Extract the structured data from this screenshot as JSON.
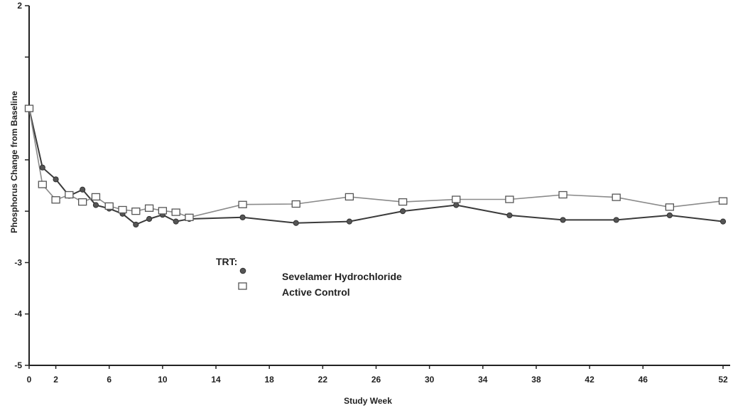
{
  "chart_data": {
    "type": "line",
    "title": "",
    "xlabel": "Study Week",
    "ylabel": "Phosphorus Change from Baseline",
    "xlim": [
      0,
      53
    ],
    "ylim": [
      -5,
      2
    ],
    "x_ticks": [
      0,
      2,
      6,
      10,
      14,
      18,
      22,
      26,
      30,
      34,
      38,
      42,
      46,
      52
    ],
    "y_ticks": [
      2,
      1,
      0,
      -1,
      -2,
      -3,
      -4,
      -5
    ],
    "x_tick_labels": [
      "0",
      "2",
      "6",
      "10",
      "14",
      "18",
      "22",
      "26",
      "30",
      "34",
      "38",
      "42",
      "46",
      "52"
    ],
    "y_tick_labels": [
      "2",
      "",
      "",
      "",
      "",
      "-3",
      "-4",
      "-5"
    ],
    "grid": false,
    "legend": {
      "title": "TRT:",
      "placement": "center"
    },
    "series": [
      {
        "name": "Sevelamer Hydrochloride",
        "marker": "circle",
        "x": [
          0,
          1,
          2,
          3,
          4,
          5,
          6,
          7,
          8,
          9,
          10,
          11,
          12,
          16,
          20,
          24,
          28,
          32,
          36,
          40,
          44,
          48,
          52
        ],
        "y": [
          0,
          -1.15,
          -1.38,
          -1.7,
          -1.58,
          -1.88,
          -1.95,
          -2.05,
          -2.26,
          -2.15,
          -2.07,
          -2.2,
          -2.15,
          -2.12,
          -2.23,
          -2.2,
          -2.0,
          -1.88,
          -2.08,
          -2.17,
          -2.17,
          -2.08,
          -2.2
        ]
      },
      {
        "name": "Active Control",
        "marker": "square",
        "x": [
          0,
          1,
          2,
          3,
          4,
          5,
          6,
          7,
          8,
          9,
          10,
          11,
          12,
          16,
          20,
          24,
          28,
          32,
          36,
          40,
          44,
          48,
          52
        ],
        "y": [
          0,
          -1.48,
          -1.78,
          -1.68,
          -1.82,
          -1.72,
          -1.9,
          -1.97,
          -2.0,
          -1.94,
          -1.99,
          -2.02,
          -2.12,
          -1.87,
          -1.86,
          -1.72,
          -1.82,
          -1.77,
          -1.77,
          -1.68,
          -1.73,
          -1.92,
          -1.8
        ]
      }
    ]
  }
}
